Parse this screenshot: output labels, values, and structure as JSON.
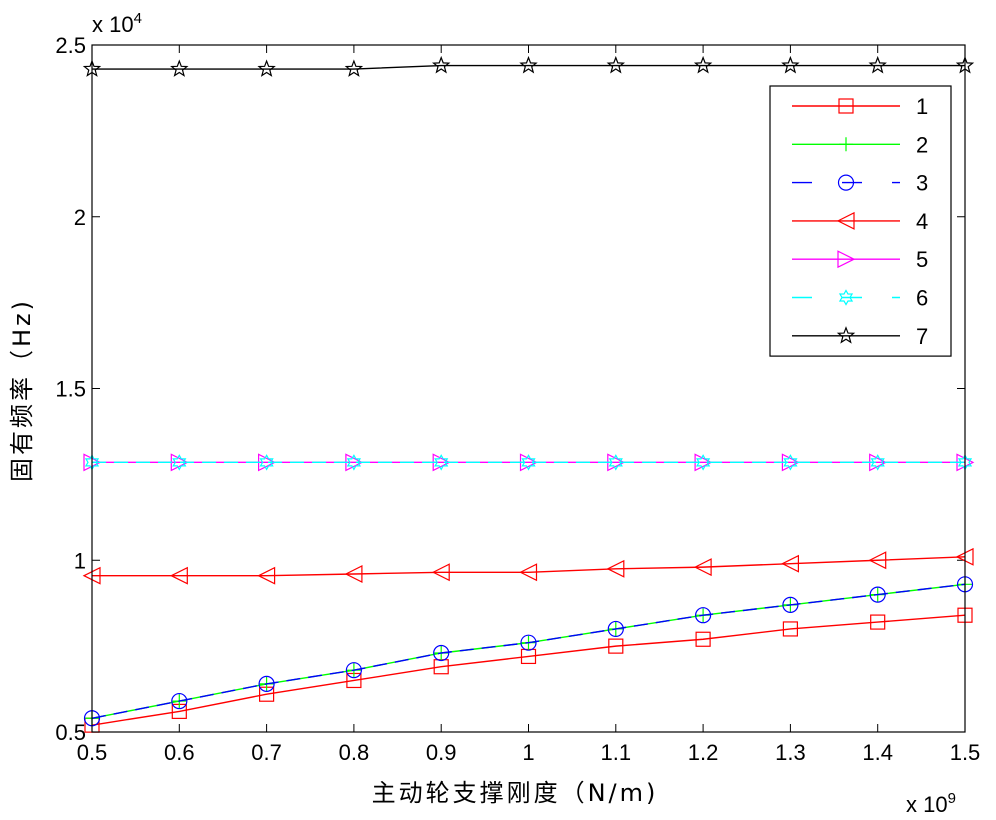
{
  "chart_data": {
    "type": "line",
    "xlabel": "主动轮支撑刚度（N/m)",
    "ylabel": "固有频率（Hz)",
    "x_multiplier": "x 10",
    "x_multiplier_exp": "9",
    "y_multiplier": "x 10",
    "y_multiplier_exp": "4",
    "xlim": [
      0.5,
      1.5
    ],
    "ylim": [
      0.5,
      2.5
    ],
    "x_ticks": [
      "0.5",
      "0.6",
      "0.7",
      "0.8",
      "0.9",
      "1",
      "1.1",
      "1.2",
      "1.3",
      "1.4",
      "1.5"
    ],
    "y_ticks": [
      "0.5",
      "1",
      "1.5",
      "2",
      "2.5"
    ],
    "grid": false,
    "legend_position": "top-right",
    "x": [
      0.5,
      0.6,
      0.7,
      0.8,
      0.9,
      1.0,
      1.1,
      1.2,
      1.3,
      1.4,
      1.5
    ],
    "series": [
      {
        "name": "1",
        "color": "#ff0000",
        "marker": "square",
        "dash": "solid",
        "values": [
          0.52,
          0.56,
          0.61,
          0.65,
          0.69,
          0.72,
          0.75,
          0.77,
          0.8,
          0.82,
          0.84
        ]
      },
      {
        "name": "2",
        "color": "#00ff00",
        "marker": "plus",
        "dash": "solid",
        "values": [
          0.54,
          0.59,
          0.64,
          0.68,
          0.73,
          0.76,
          0.8,
          0.84,
          0.87,
          0.9,
          0.93
        ]
      },
      {
        "name": "3",
        "color": "#0000ff",
        "marker": "circle",
        "dash": "dashed",
        "values": [
          0.54,
          0.59,
          0.64,
          0.68,
          0.73,
          0.76,
          0.8,
          0.84,
          0.87,
          0.9,
          0.93
        ]
      },
      {
        "name": "4",
        "color": "#ff0000",
        "marker": "triangle-left",
        "dash": "solid",
        "values": [
          0.955,
          0.955,
          0.955,
          0.96,
          0.965,
          0.965,
          0.975,
          0.98,
          0.99,
          1.0,
          1.01
        ]
      },
      {
        "name": "5",
        "color": "#ff00ff",
        "marker": "triangle-right",
        "dash": "solid",
        "values": [
          1.285,
          1.285,
          1.285,
          1.285,
          1.285,
          1.285,
          1.285,
          1.285,
          1.285,
          1.285,
          1.285
        ]
      },
      {
        "name": "6",
        "color": "#00ffff",
        "marker": "hexagram",
        "dash": "dashed",
        "values": [
          1.285,
          1.285,
          1.285,
          1.285,
          1.285,
          1.285,
          1.285,
          1.285,
          1.285,
          1.285,
          1.285
        ]
      },
      {
        "name": "7",
        "color": "#000000",
        "marker": "pentagram",
        "dash": "solid",
        "values": [
          2.43,
          2.43,
          2.43,
          2.43,
          2.44,
          2.44,
          2.44,
          2.44,
          2.44,
          2.44,
          2.44
        ]
      }
    ]
  }
}
